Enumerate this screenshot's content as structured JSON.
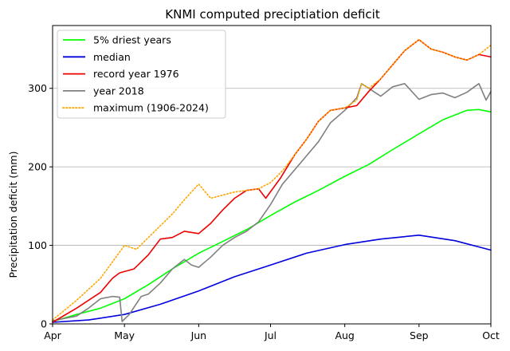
{
  "chart_data": {
    "type": "line",
    "title": "KNMI computed preciptiation deficit",
    "xlabel": "",
    "ylabel": "Precipitation deficit (mm)",
    "x_tick_labels": [
      "Apr",
      "May",
      "Jun",
      "Jul",
      "Aug",
      "Sep",
      "Oct"
    ],
    "x_ticks": [
      "04-01",
      "05-01",
      "06-01",
      "07-01",
      "08-01",
      "09-01",
      "10-01"
    ],
    "y_tick_labels": [
      "0",
      "100",
      "200",
      "300"
    ],
    "y_ticks": [
      0,
      100,
      200,
      300
    ],
    "xlim": [
      "04-01",
      "10-01"
    ],
    "ylim": [
      0,
      380
    ],
    "grid": "horizontal",
    "legend_position": "top-left",
    "series": [
      {
        "name": "5% driest years",
        "color": "#00ff00",
        "style": "solid",
        "x": [
          "04-01",
          "04-11",
          "04-21",
          "05-01",
          "05-11",
          "05-21",
          "06-01",
          "06-11",
          "06-21",
          "07-01",
          "07-11",
          "07-21",
          "08-01",
          "08-11",
          "08-21",
          "09-01",
          "09-11",
          "09-21",
          "09-26",
          "10-01"
        ],
        "y": [
          3,
          12,
          20,
          32,
          50,
          70,
          90,
          105,
          120,
          138,
          155,
          170,
          188,
          203,
          222,
          242,
          260,
          272,
          273,
          270
        ]
      },
      {
        "name": "median",
        "color": "#0000dd",
        "style": "solid",
        "x": [
          "04-01",
          "04-16",
          "05-01",
          "05-16",
          "06-01",
          "06-16",
          "07-01",
          "07-16",
          "08-01",
          "08-16",
          "09-01",
          "09-16",
          "10-01"
        ],
        "y": [
          2,
          5,
          12,
          25,
          42,
          60,
          75,
          90,
          101,
          108,
          113,
          106,
          94
        ]
      },
      {
        "name": "record year 1976",
        "color": "#ee0000",
        "style": "solid",
        "x": [
          "04-01",
          "04-11",
          "04-21",
          "04-26",
          "04-29",
          "05-05",
          "05-11",
          "05-16",
          "05-21",
          "05-26",
          "06-01",
          "06-06",
          "06-11",
          "06-16",
          "06-21",
          "06-26",
          "06-29",
          "07-05",
          "07-11",
          "07-16",
          "07-21",
          "07-26",
          "08-01",
          "08-06",
          "08-11",
          "08-16",
          "08-21",
          "08-26",
          "09-01",
          "09-06",
          "09-11",
          "09-16",
          "09-21",
          "09-26",
          "10-01"
        ],
        "y": [
          2,
          20,
          40,
          58,
          65,
          70,
          88,
          108,
          110,
          118,
          115,
          128,
          145,
          160,
          170,
          172,
          160,
          185,
          215,
          235,
          258,
          272,
          275,
          278,
          296,
          312,
          330,
          348,
          362,
          350,
          346,
          340,
          336,
          343,
          340
        ]
      },
      {
        "name": "year 2018",
        "color": "#808080",
        "style": "solid",
        "x": [
          "04-01",
          "04-11",
          "04-16",
          "04-21",
          "04-26",
          "04-29",
          "04-30",
          "05-03",
          "05-08",
          "05-11",
          "05-16",
          "05-21",
          "05-26",
          "05-29",
          "06-01",
          "06-06",
          "06-11",
          "06-16",
          "06-21",
          "06-26",
          "07-01",
          "07-06",
          "07-11",
          "07-16",
          "07-21",
          "07-26",
          "08-01",
          "08-06",
          "08-08",
          "08-11",
          "08-16",
          "08-21",
          "08-26",
          "09-01",
          "09-06",
          "09-11",
          "09-16",
          "09-21",
          "09-26",
          "09-29",
          "10-01"
        ],
        "y": [
          4,
          10,
          20,
          32,
          35,
          34,
          3,
          12,
          35,
          38,
          52,
          70,
          82,
          75,
          72,
          85,
          100,
          110,
          118,
          130,
          152,
          178,
          196,
          214,
          232,
          256,
          272,
          288,
          306,
          300,
          290,
          302,
          306,
          286,
          292,
          294,
          288,
          295,
          306,
          285,
          296
        ]
      },
      {
        "name": "maximum (1906-2024)",
        "color": "#ffa500",
        "style": "dotted",
        "x": [
          "04-01",
          "04-11",
          "04-21",
          "05-01",
          "05-06",
          "05-11",
          "05-16",
          "05-21",
          "05-26",
          "06-01",
          "06-06",
          "06-11",
          "06-16",
          "06-21",
          "06-26",
          "07-01",
          "07-06",
          "07-11",
          "07-16",
          "07-21",
          "07-26",
          "08-01",
          "08-06",
          "08-08",
          "08-11",
          "08-16",
          "08-21",
          "08-26",
          "09-01",
          "09-06",
          "09-11",
          "09-16",
          "09-21",
          "09-26",
          "10-01"
        ],
        "y": [
          5,
          30,
          58,
          100,
          95,
          110,
          125,
          140,
          158,
          178,
          160,
          164,
          168,
          170,
          172,
          180,
          195,
          215,
          235,
          258,
          272,
          275,
          285,
          306,
          300,
          312,
          330,
          348,
          362,
          350,
          346,
          340,
          336,
          343,
          355
        ]
      }
    ]
  }
}
